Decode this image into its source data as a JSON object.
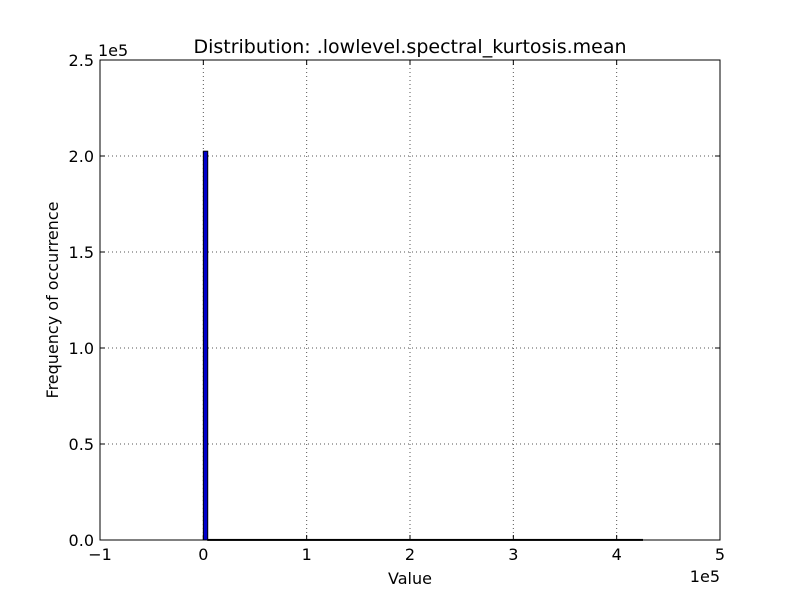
{
  "chart_data": {
    "type": "bar",
    "title": "Distribution: .lowlevel.spectral_kurtosis.mean",
    "xlabel": "Value",
    "ylabel": "Frequency of occurrence",
    "xlim": [
      -100000,
      500000
    ],
    "ylim": [
      0,
      250000
    ],
    "x_ticks": [
      -100000,
      0,
      100000,
      200000,
      300000,
      400000,
      500000
    ],
    "x_tick_labels": [
      "−1",
      "0",
      "1",
      "2",
      "3",
      "4",
      "5"
    ],
    "y_ticks": [
      0,
      50000,
      100000,
      150000,
      200000,
      250000
    ],
    "y_tick_labels": [
      "0.0",
      "0.5",
      "1.0",
      "1.5",
      "2.0",
      "2.5"
    ],
    "x_offset_label": "1e5",
    "y_offset_label": "1e5",
    "grid": true,
    "bars": [
      {
        "x_start": 0,
        "x_end": 4250,
        "value": 202500
      },
      {
        "x_start": 4250,
        "x_end": 425000,
        "value": 300
      }
    ],
    "colors": {
      "bar": "#0000cc",
      "grid": "#555555",
      "axis": "#000000"
    }
  }
}
